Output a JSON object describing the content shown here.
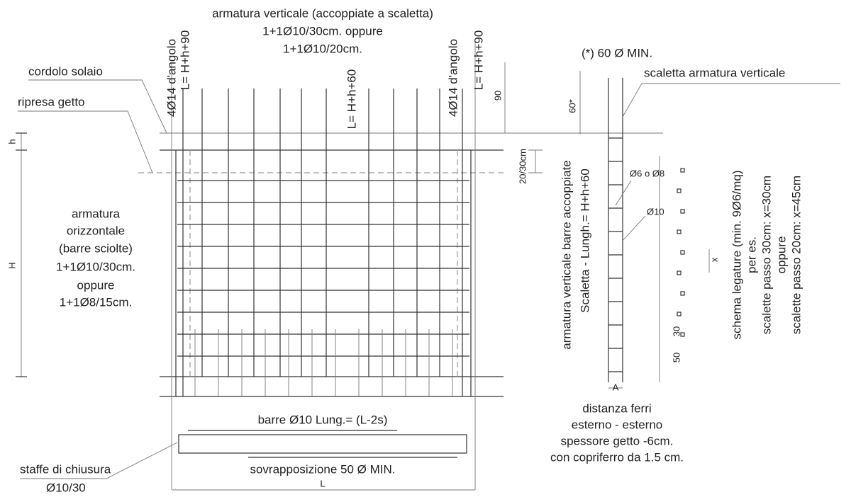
{
  "top_title": [
    "armatura verticale (accoppiate a scaletta)",
    "1+1Ø10/30cm. oppure",
    "1+1Ø10/20cm."
  ],
  "left_labels": {
    "cordolo": "cordolo solaio",
    "ripresa": "ripresa getto"
  },
  "bar_labels": {
    "left_corner": "4Ø14 d'angolo",
    "left_length": "L= H+h+90",
    "center_length": "L= H+h+60",
    "right_corner": "4Ø14 d'angolo",
    "right_length": "L= H+h+90"
  },
  "dimensions": {
    "d90": "90",
    "d60": "60*",
    "d2030": "20/30cm",
    "h": "h",
    "H": "H",
    "x": "x",
    "d30": "30",
    "d50": "50",
    "A": "A",
    "L": "L"
  },
  "horizontal_block": [
    "armatura",
    "orizzontale",
    "(barre sciolte)",
    "1+1Ø10/30cm.",
    "oppure",
    "1+1Ø8/15cm."
  ],
  "right_note": "(*) 60 Ø MIN.",
  "ladder_label": "scaletta armatura verticale",
  "ladder_vertical": [
    "armatura verticale barre accoppiate",
    "Scaletta - Lungh.= H+h+60"
  ],
  "ladder_bars": {
    "rung": "Ø6 o Ø8",
    "main": "Ø10"
  },
  "ties_block": [
    "schema legature (min. 9Ø6/mq)",
    "per es.",
    "scalette passo 30cm: x=30cm",
    "oppure",
    "scalette passo 20cm: x=45cm"
  ],
  "distance_block": [
    "distanza ferri",
    "esterno - esterno",
    "spessore getto -6cm.",
    "con copriferro da 1.5 cm."
  ],
  "bottom_bars": "barre Ø10 Lung.= (L-2s)",
  "overlap": "sovrapposizione 50 Ø MIN.",
  "stirrups": [
    "staffe di chiusura",
    "Ø10/30"
  ]
}
